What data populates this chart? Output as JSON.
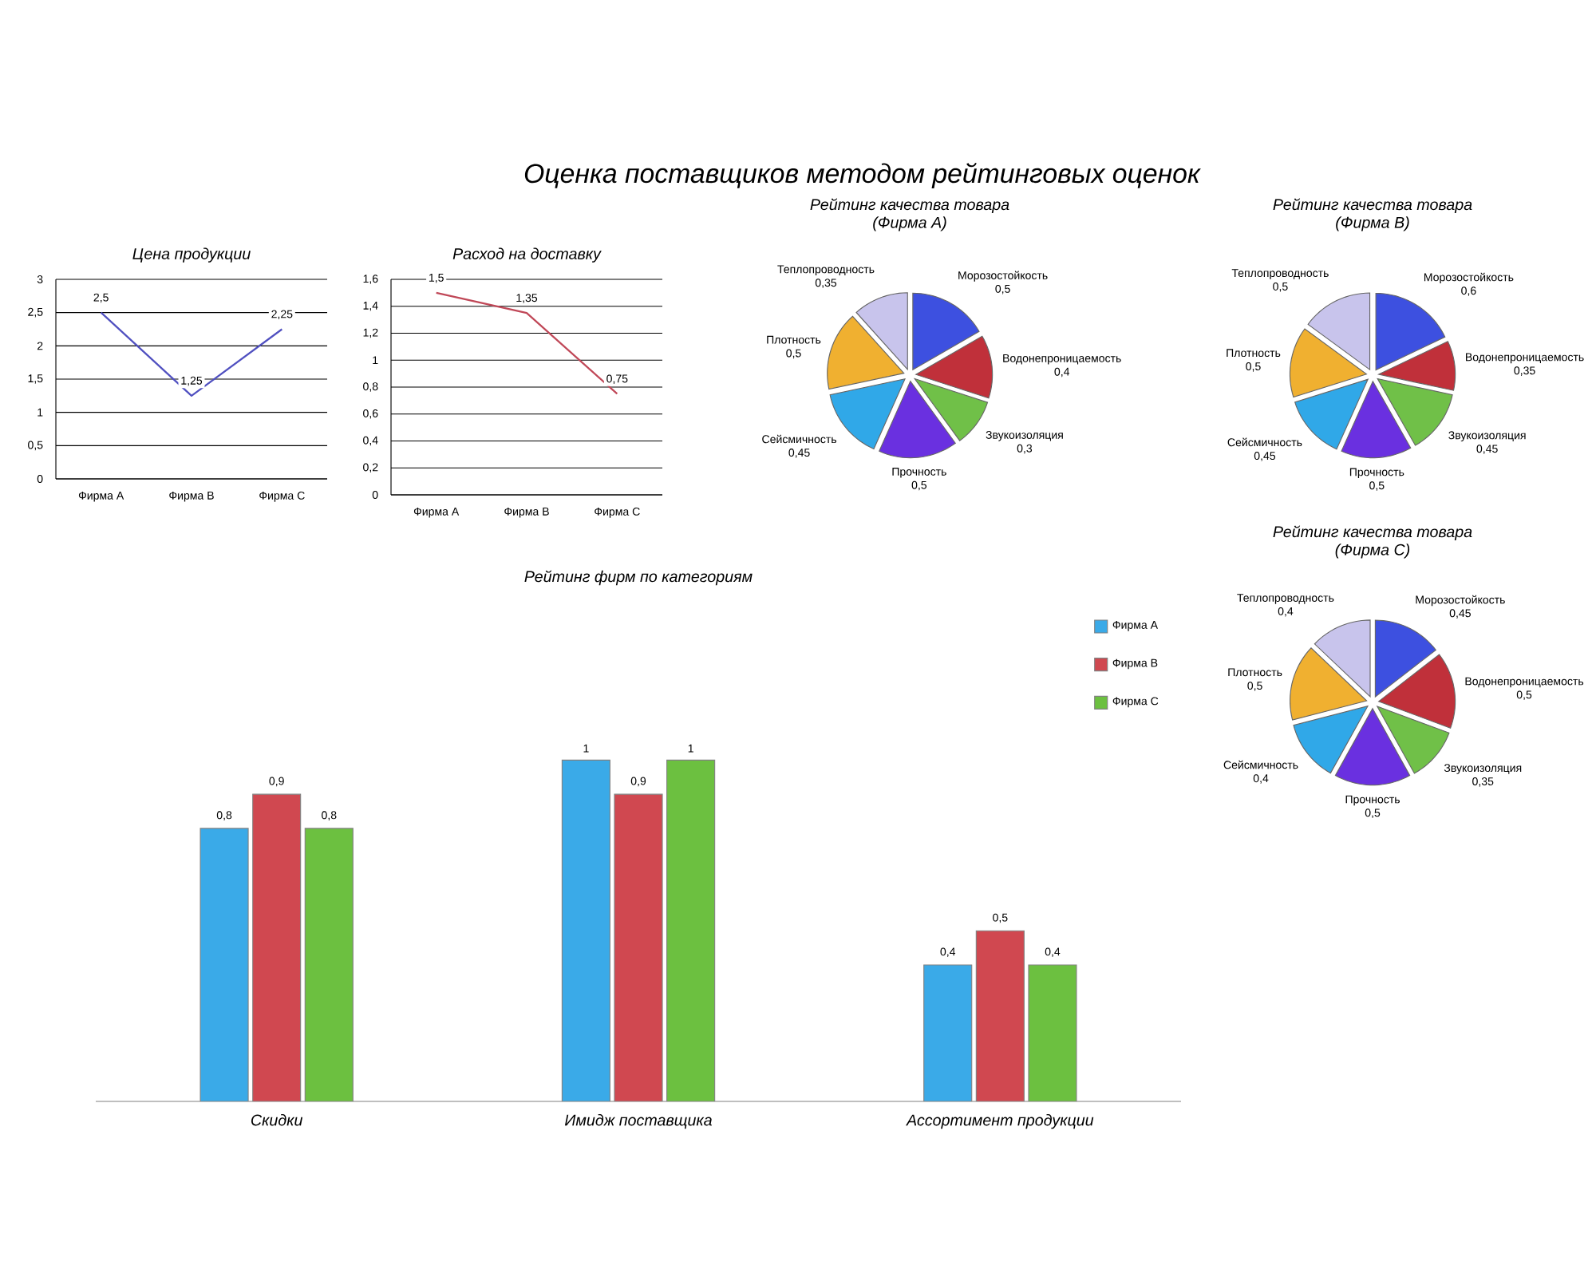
{
  "chart_data": [
    {
      "type": "other",
      "title": "Оценка поставщиков методом рейтинговых оценок"
    },
    {
      "type": "line",
      "title": "Цена продукции",
      "categories": [
        "Фирма А",
        "Фирма В",
        "Фирма С"
      ],
      "values": [
        2.5,
        1.25,
        2.25
      ],
      "value_labels": [
        "2,5",
        "1,25",
        "2,25"
      ],
      "color": "#5050c0",
      "ylim": [
        0,
        3
      ],
      "yticks": [
        0,
        {
          "value": 0.5,
          "label": "0,5"
        },
        1,
        {
          "value": 1.5,
          "label": "1,5"
        },
        2,
        {
          "value": 2.5,
          "label": "2,5"
        },
        3
      ],
      "grid": "y"
    },
    {
      "type": "line",
      "title": "Расход на доставку",
      "categories": [
        "Фирма А",
        "Фирма В",
        "Фирма С"
      ],
      "values": [
        1.5,
        1.35,
        0.75
      ],
      "value_labels": [
        "1,5",
        "1,35",
        "0,75"
      ],
      "color": "#c04858",
      "ylim": [
        0,
        1.6
      ],
      "yticks": [
        0,
        {
          "value": 0.2,
          "label": "0,2"
        },
        {
          "value": 0.4,
          "label": "0,4"
        },
        {
          "value": 0.6,
          "label": "0,6"
        },
        {
          "value": 0.8,
          "label": "0,8"
        },
        1,
        {
          "value": 1.2,
          "label": "1,2"
        },
        {
          "value": 1.4,
          "label": "1,4"
        },
        {
          "value": 1.6,
          "label": "1,6"
        }
      ],
      "grid": "y"
    },
    {
      "type": "pie",
      "title": "Рейтинг качества товара",
      "subtitle": "(Фирма А)",
      "categories": [
        "Морозостойкость",
        "Водонепроницаемость",
        "Звукоизоляция",
        "Прочность",
        "Сейсмичность",
        "Плотность",
        "Теплопроводность"
      ],
      "values": [
        0.5,
        0.4,
        0.3,
        0.5,
        0.45,
        0.5,
        0.35
      ],
      "value_labels": [
        "0,5",
        "0,4",
        "0,3",
        "0,5",
        "0,45",
        "0,5",
        "0,35"
      ],
      "colors": [
        "#3d50e0",
        "#c0303a",
        "#70c048",
        "#6a30e0",
        "#30a8e8",
        "#f0b030",
        "#c8c4ec"
      ]
    },
    {
      "type": "pie",
      "title": "Рейтинг качества товара",
      "subtitle": "(Фирма В)",
      "categories": [
        "Морозостойкость",
        "Водонепроницаемость",
        "Звукоизоляция",
        "Прочность",
        "Сейсмичность",
        "Плотность",
        "Теплопроводность"
      ],
      "values": [
        0.6,
        0.35,
        0.45,
        0.5,
        0.45,
        0.5,
        0.5
      ],
      "value_labels": [
        "0,6",
        "0,35",
        "0,45",
        "0,5",
        "0,45",
        "0,5",
        "0,5"
      ],
      "colors": [
        "#3d50e0",
        "#c0303a",
        "#70c048",
        "#6a30e0",
        "#30a8e8",
        "#f0b030",
        "#c8c4ec"
      ]
    },
    {
      "type": "bar",
      "title": "Рейтинг фирм по категориям",
      "categories": [
        "Скидки",
        "Имидж поставщика",
        "Ассортимент продукции"
      ],
      "legend": "top right",
      "series": [
        {
          "name": "Фирма А",
          "color": "#3aaae8",
          "values": [
            0.8,
            1,
            0.4
          ],
          "value_labels": [
            "0,8",
            "1",
            "0,4"
          ]
        },
        {
          "name": "Фирма В",
          "color": "#d04850",
          "values": [
            0.9,
            0.9,
            0.5
          ],
          "value_labels": [
            "0,9",
            "0,9",
            "0,5"
          ]
        },
        {
          "name": "Фирма С",
          "color": "#6cc040",
          "values": [
            0.8,
            1,
            0.4
          ],
          "value_labels": [
            "0,8",
            "1",
            "0,4"
          ]
        }
      ]
    },
    {
      "type": "pie",
      "title": "Рейтинг качества товара",
      "subtitle": "(Фирма С)",
      "categories": [
        "Морозостойкость",
        "Водонепроницаемость",
        "Звукоизоляция",
        "Прочность",
        "Сейсмичность",
        "Плотность",
        "Теплопроводность"
      ],
      "values": [
        0.45,
        0.5,
        0.35,
        0.5,
        0.4,
        0.5,
        0.4
      ],
      "value_labels": [
        "0,45",
        "0,5",
        "0,35",
        "0,5",
        "0,4",
        "0,5",
        "0,4"
      ],
      "colors": [
        "#3d50e0",
        "#c0303a",
        "#70c048",
        "#6a30e0",
        "#30a8e8",
        "#f0b030",
        "#c8c4ec"
      ]
    }
  ]
}
